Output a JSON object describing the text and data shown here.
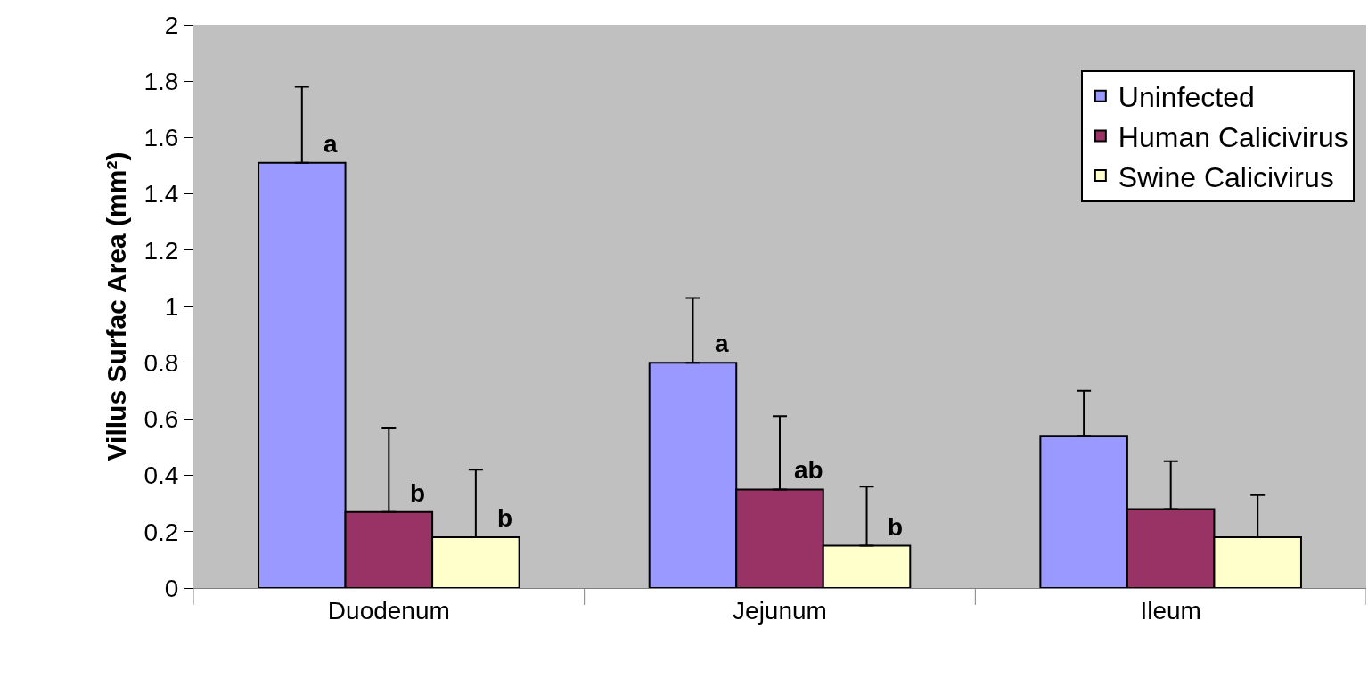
{
  "chart_data": {
    "type": "bar",
    "ylabel": "Villus Surfac Area (mm²)",
    "categories": [
      "Duodenum",
      "Jejunum",
      "Ileum"
    ],
    "series": [
      {
        "name": "Uninfected",
        "color": "#9999ff",
        "values": [
          1.51,
          0.8,
          0.54
        ],
        "errors": [
          [
            1.51,
            1.78
          ],
          [
            0.8,
            1.03
          ],
          [
            0.54,
            0.7
          ]
        ]
      },
      {
        "name": "Human Calicivirus",
        "color": "#993366",
        "values": [
          0.27,
          0.35,
          0.28
        ],
        "errors": [
          [
            0.27,
            0.57
          ],
          [
            0.35,
            0.61
          ],
          [
            0.28,
            0.45
          ]
        ]
      },
      {
        "name": "Swine Calicivirus",
        "color": "#ffffcc",
        "values": [
          0.18,
          0.15,
          0.18
        ],
        "errors": [
          [
            0.18,
            0.42
          ],
          [
            0.15,
            0.36
          ],
          [
            0.18,
            0.33
          ]
        ]
      }
    ],
    "annotations": [
      "a",
      "b",
      "b",
      "a",
      "ab",
      "b"
    ],
    "ylim": [
      0,
      2
    ],
    "yticks": [
      0,
      0.2,
      0.4,
      0.6,
      0.8,
      1,
      1.2,
      1.4,
      1.6,
      1.8,
      2
    ],
    "grid": false,
    "legend": "top right"
  }
}
